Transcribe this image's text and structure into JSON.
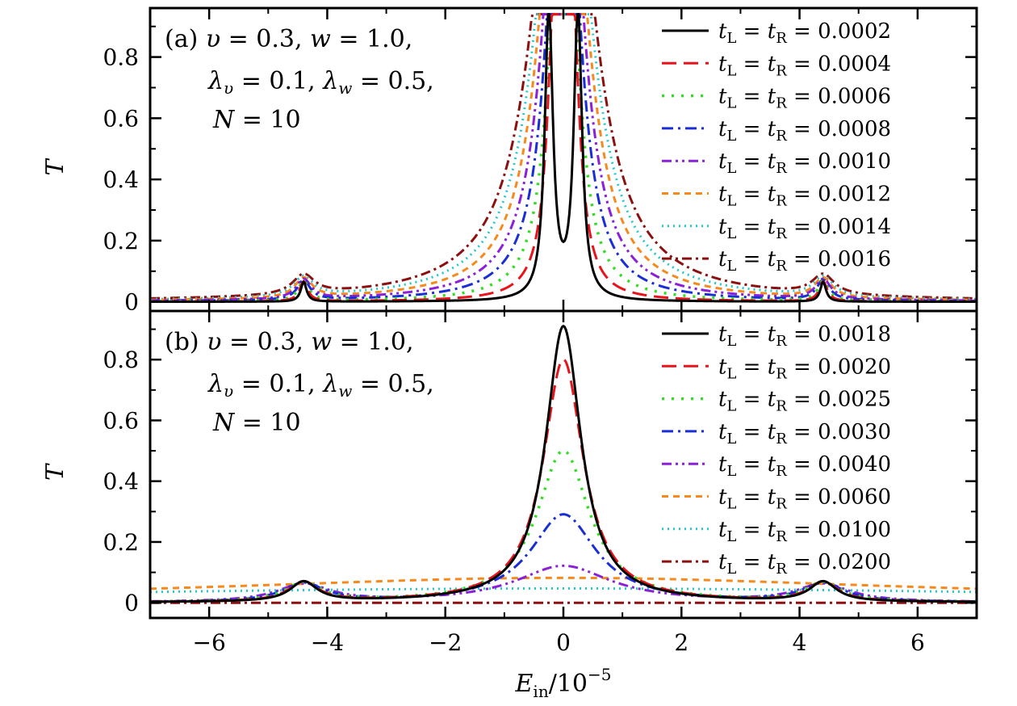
{
  "chart_data": [
    {
      "type": "line",
      "panel": "(a)",
      "annotation": [
        "v = 0.3, w = 1.0,",
        "λv = 0.1, λw = 0.5,",
        "N = 10"
      ],
      "ylabel": "T",
      "xlim": [
        -7,
        7
      ],
      "ylim": [
        -0.03,
        0.96
      ],
      "yticks": [
        0,
        0.2,
        0.4,
        0.6,
        0.8
      ],
      "ytick_labels": [
        "0",
        "0.2",
        "0.4",
        "0.6",
        "0.8"
      ],
      "legend_position": "top-right",
      "series": [
        {
          "name": "tL = tR = 0.0002",
          "t": 0.0002,
          "color": "#000000",
          "dash": "",
          "width": 3.0
        },
        {
          "name": "tL = tR = 0.0004",
          "t": 0.0004,
          "color": "#e8141b",
          "dash": "18,9",
          "width": 3.0
        },
        {
          "name": "tL = tR = 0.0006",
          "t": 0.0006,
          "color": "#33dd22",
          "dash": "3,9",
          "width": 3.5
        },
        {
          "name": "tL = tR = 0.0008",
          "t": 0.0008,
          "color": "#1a2ed6",
          "dash": "14,6,3,6",
          "width": 3.0
        },
        {
          "name": "tL = tR = 0.0010",
          "t": 0.001,
          "color": "#8a21d6",
          "dash": "12,5,3,5,3,5",
          "width": 3.0
        },
        {
          "name": "tL = tR = 0.0012",
          "t": 0.0012,
          "color": "#f58a1f",
          "dash": "8,6",
          "width": 3.0
        },
        {
          "name": "tL = tR = 0.0014",
          "t": 0.0014,
          "color": "#22c8cc",
          "dash": "2,5",
          "width": 3.0
        },
        {
          "name": "tL = tR = 0.0016",
          "t": 0.0016,
          "color": "#8c1010",
          "dash": "12,5,3,5",
          "width": 3.0
        }
      ]
    },
    {
      "type": "line",
      "panel": "(b)",
      "annotation": [
        "v = 0.3, w = 1.0,",
        "λv = 0.1, λw = 0.5,",
        "N = 10"
      ],
      "xlabel": "Ein/10^-5",
      "ylabel": "T",
      "xlim": [
        -7,
        7
      ],
      "ylim": [
        -0.05,
        0.96
      ],
      "xticks": [
        -6,
        -4,
        -2,
        0,
        2,
        4,
        6
      ],
      "xtick_labels": [
        "−6",
        "−4",
        "−2",
        "0",
        "2",
        "4",
        "6"
      ],
      "yticks": [
        0,
        0.2,
        0.4,
        0.6,
        0.8
      ],
      "ytick_labels": [
        "0",
        "0.2",
        "0.4",
        "0.6",
        "0.8"
      ],
      "legend_position": "top-right",
      "series": [
        {
          "name": "tL = tR = 0.0018",
          "t": 0.0018,
          "color": "#000000",
          "dash": "",
          "width": 3.0
        },
        {
          "name": "tL = tR = 0.0020",
          "t": 0.002,
          "color": "#e8141b",
          "dash": "18,9",
          "width": 3.0
        },
        {
          "name": "tL = tR = 0.0025",
          "t": 0.0025,
          "color": "#33dd22",
          "dash": "3,9",
          "width": 3.5
        },
        {
          "name": "tL = tR = 0.0030",
          "t": 0.003,
          "color": "#1a2ed6",
          "dash": "14,6,3,6",
          "width": 3.0
        },
        {
          "name": "tL = tR = 0.0040",
          "t": 0.004,
          "color": "#8a21d6",
          "dash": "12,5,3,5,3,5",
          "width": 3.0
        },
        {
          "name": "tL = tR = 0.0060",
          "t": 0.006,
          "color": "#f58a1f",
          "dash": "8,6",
          "width": 3.0
        },
        {
          "name": "tL = tR = 0.0100",
          "t": 0.01,
          "color": "#22c8cc",
          "dash": "2,5",
          "width": 3.0
        },
        {
          "name": "tL = tR = 0.0200",
          "t": 0.02,
          "color": "#8c1010",
          "dash": "12,5,3,5",
          "width": 3.0
        }
      ]
    }
  ]
}
